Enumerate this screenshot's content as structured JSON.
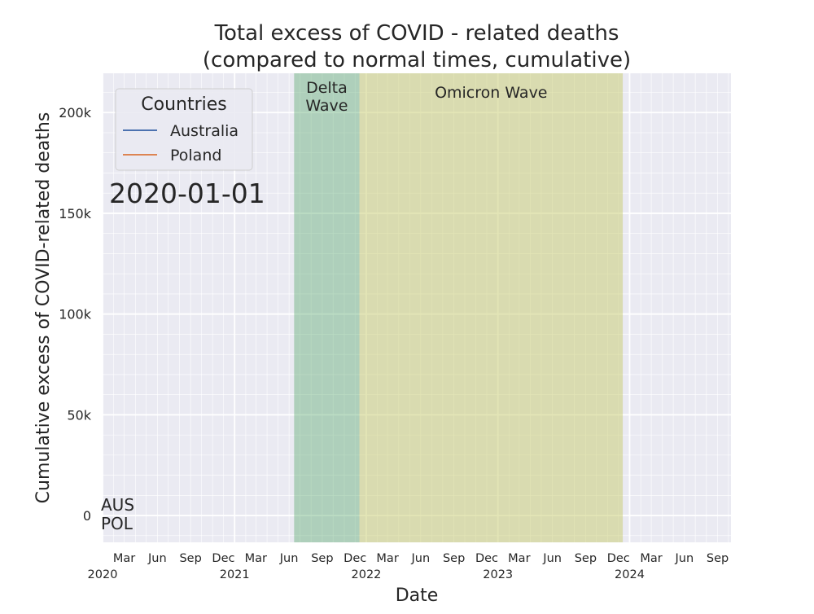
{
  "chart_data": {
    "type": "line",
    "title": "Total excess of COVID - related deaths\n(compared to normal times, cumulative)",
    "xlabel": "Date",
    "ylabel": "Cumulative excess of COVID-related deaths",
    "xlim": [
      "2020-01-01",
      "2024-10-08"
    ],
    "ylim": [
      -13300,
      219500
    ],
    "grid": true,
    "y_ticks": [
      {
        "value": 0,
        "label": "0"
      },
      {
        "value": 50000,
        "label": "50k"
      },
      {
        "value": 100000,
        "label": "100k"
      },
      {
        "value": 150000,
        "label": "150k"
      },
      {
        "value": 200000,
        "label": "200k"
      }
    ],
    "x_ticks_minor": [
      {
        "date": "2020-03-01",
        "label": "Mar"
      },
      {
        "date": "2020-06-01",
        "label": "Jun"
      },
      {
        "date": "2020-09-01",
        "label": "Sep"
      },
      {
        "date": "2020-12-01",
        "label": "Dec"
      },
      {
        "date": "2021-03-01",
        "label": "Mar"
      },
      {
        "date": "2021-06-01",
        "label": "Jun"
      },
      {
        "date": "2021-09-01",
        "label": "Sep"
      },
      {
        "date": "2021-12-01",
        "label": "Dec"
      },
      {
        "date": "2022-03-01",
        "label": "Mar"
      },
      {
        "date": "2022-06-01",
        "label": "Jun"
      },
      {
        "date": "2022-09-01",
        "label": "Sep"
      },
      {
        "date": "2022-12-01",
        "label": "Dec"
      },
      {
        "date": "2023-03-01",
        "label": "Mar"
      },
      {
        "date": "2023-06-01",
        "label": "Jun"
      },
      {
        "date": "2023-09-01",
        "label": "Sep"
      },
      {
        "date": "2023-12-01",
        "label": "Dec"
      },
      {
        "date": "2024-03-01",
        "label": "Mar"
      },
      {
        "date": "2024-06-01",
        "label": "Jun"
      },
      {
        "date": "2024-09-01",
        "label": "Sep"
      }
    ],
    "x_ticks_major": [
      {
        "date": "2020-01-01",
        "label": "2020"
      },
      {
        "date": "2021-01-01",
        "label": "2021"
      },
      {
        "date": "2022-01-01",
        "label": "2022"
      },
      {
        "date": "2023-01-01",
        "label": "2023"
      },
      {
        "date": "2024-01-01",
        "label": "2024"
      }
    ],
    "legend": {
      "title": "Countries",
      "placement": "upper-left"
    },
    "series": [
      {
        "name": "Australia",
        "end_label": "AUS",
        "color": "#4c72b0",
        "x": [
          "2020-01-01"
        ],
        "y": [
          0
        ]
      },
      {
        "name": "Poland",
        "end_label": "POL",
        "color": "#dd8452",
        "x": [
          "2020-01-01"
        ],
        "y": [
          0
        ]
      }
    ],
    "annotations": {
      "date_label": "2020-01-01"
    },
    "spans": [
      {
        "label": "Delta\nWave",
        "start": "2021-06-15",
        "end": "2021-12-13",
        "color": "#55a868"
      },
      {
        "label": "Omicron Wave",
        "start": "2021-12-13",
        "end": "2023-12-13",
        "color": "#c8cc6e"
      }
    ]
  }
}
